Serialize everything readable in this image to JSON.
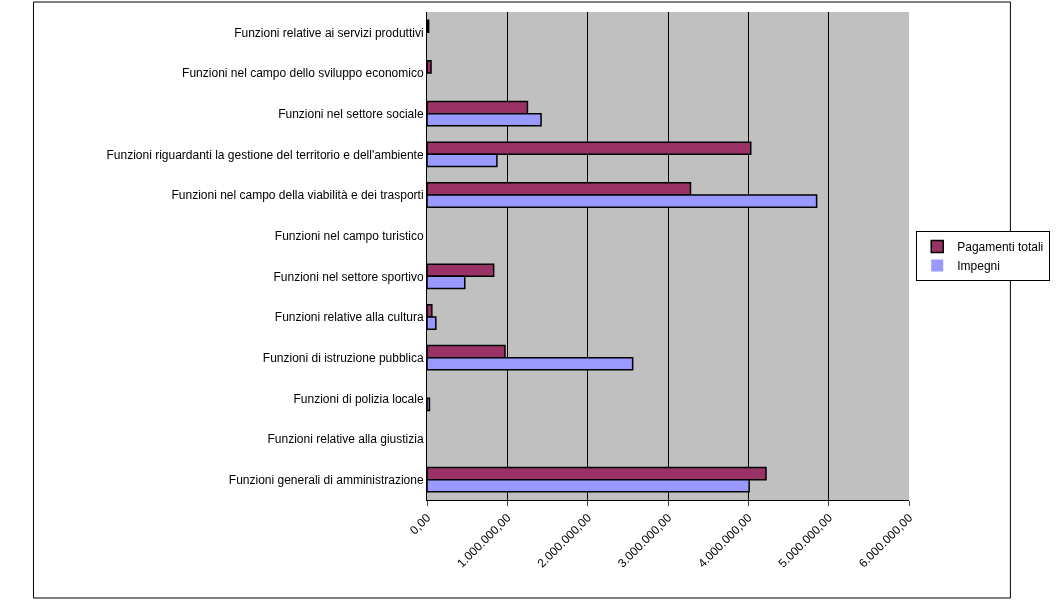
{
  "chart_data": {
    "type": "bar",
    "orientation": "horizontal",
    "categories": [
      "Funzioni relative ai servizi produttivi",
      "Funzioni nel campo dello sviluppo economico",
      "Funzioni nel settore sociale",
      "Funzioni riguardanti la gestione del territorio e dell'ambiente",
      "Funzioni nel campo della viabilità e dei trasporti",
      "Funzioni nel campo turistico",
      "Funzioni nel settore sportivo",
      "Funzioni relative alla cultura",
      "Funzioni di istruzione pubblica",
      "Funzioni di polizia locale",
      "Funzioni relative alla giustizia",
      "Funzioni generali di amministrazione"
    ],
    "series": [
      {
        "name": "Pagamenti totali",
        "color": "#993366",
        "values": [
          20000,
          50000,
          1250000,
          4030000,
          3280000,
          0,
          830000,
          60000,
          970000,
          0,
          0,
          4220000
        ]
      },
      {
        "name": "Impegni",
        "color": "#9999ff",
        "values": [
          0,
          0,
          1420000,
          870000,
          4850000,
          0,
          470000,
          110000,
          2560000,
          30000,
          0,
          4010000
        ]
      }
    ],
    "xlim": [
      0,
      6000000
    ],
    "xticks": [
      {
        "value": 0,
        "label": "0,00"
      },
      {
        "value": 1000000,
        "label": "1.000.000,00"
      },
      {
        "value": 2000000,
        "label": "2.000.000,00"
      },
      {
        "value": 3000000,
        "label": "3.000.000,00"
      },
      {
        "value": 4000000,
        "label": "4.000.000,00"
      },
      {
        "value": 5000000,
        "label": "5.000.000,00"
      },
      {
        "value": 6000000,
        "label": "6.000.000,00"
      }
    ],
    "grid": "x",
    "legend": "right"
  }
}
